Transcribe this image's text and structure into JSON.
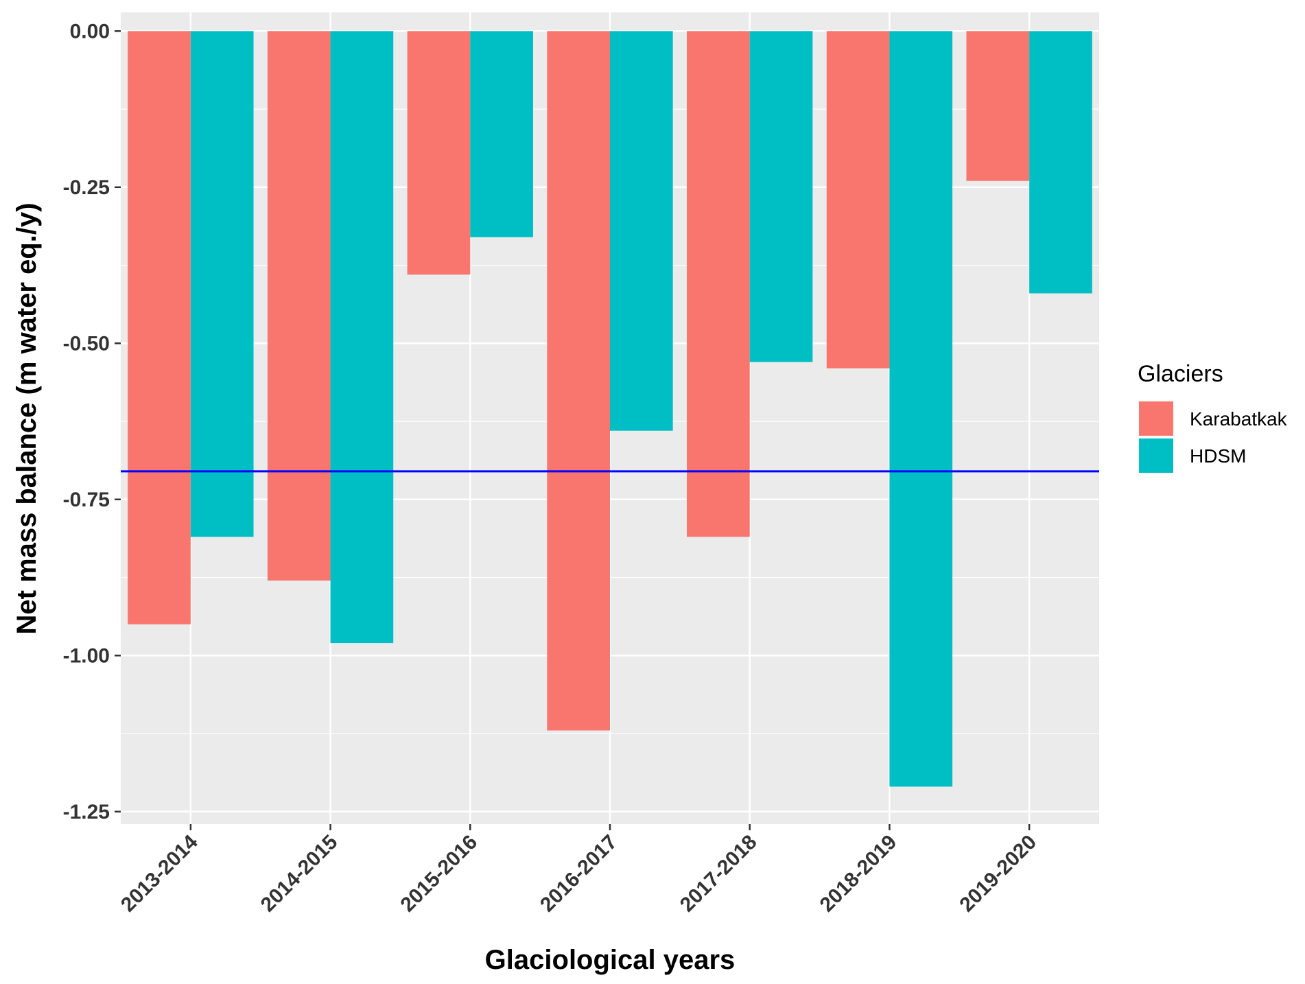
{
  "chart_data": {
    "type": "bar",
    "title": "",
    "xlabel": "Glaciological years",
    "ylabel": "Net mass balance (m water eq./y)",
    "categories": [
      "2013-2014",
      "2014-2015",
      "2015-2016",
      "2016-2017",
      "2017-2018",
      "2018-2019",
      "2019-2020"
    ],
    "series": [
      {
        "name": "Karabatkak",
        "color": "#F8766D",
        "values": [
          -0.95,
          -0.88,
          -0.39,
          -1.12,
          -0.81,
          -0.54,
          -0.24
        ]
      },
      {
        "name": "HDSM",
        "color": "#00BFC4",
        "values": [
          -0.81,
          -0.98,
          -0.33,
          -0.64,
          -0.53,
          -1.21,
          -0.42
        ]
      }
    ],
    "ylim": [
      -1.27,
      0.03
    ],
    "yticks": [
      0.0,
      -0.25,
      -0.5,
      -0.75,
      -1.0,
      -1.25
    ],
    "ytick_labels": [
      "0.00",
      "-0.25",
      "-0.50",
      "-0.75",
      "-1.00",
      "-1.25"
    ],
    "reference_line": {
      "value": -0.705,
      "color": "#0000FF"
    },
    "legend": {
      "title": "Glaciers",
      "position": "right"
    },
    "grid": true,
    "panel_background": "#EBEBEB",
    "grid_color": "#FFFFFF"
  }
}
